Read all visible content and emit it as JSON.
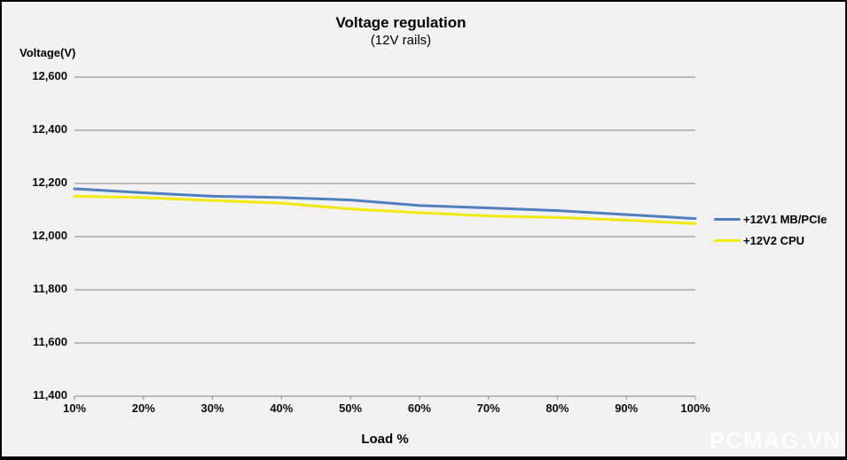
{
  "chart": {
    "title": "Voltage regulation",
    "subtitle": "(12V rails)",
    "y_axis_title": "Voltage(V)",
    "x_axis_title": "Load %"
  },
  "chart_data": {
    "type": "line",
    "title": "Voltage regulation",
    "subtitle": "(12V rails)",
    "xlabel": "Load %",
    "ylabel": "Voltage(V)",
    "categories": [
      "10%",
      "20%",
      "30%",
      "40%",
      "50%",
      "60%",
      "70%",
      "80%",
      "90%",
      "100%"
    ],
    "series": [
      {
        "name": "+12V1 MB/PCIe",
        "color": "#4E80BE",
        "values": [
          12180,
          12165,
          12152,
          12147,
          12138,
          12117,
          12108,
          12098,
          12083,
          12068
        ]
      },
      {
        "name": "+12V2 CPU",
        "color": "#F2E90D",
        "values": [
          12152,
          12147,
          12136,
          12126,
          12104,
          12090,
          12078,
          12072,
          12062,
          12049
        ]
      }
    ],
    "ylim": [
      11400,
      12600
    ],
    "y_ticks": [
      {
        "value": 12600,
        "label": "12,600"
      },
      {
        "value": 12400,
        "label": "12,400"
      },
      {
        "value": 12200,
        "label": "12,200"
      },
      {
        "value": 12000,
        "label": "12,000"
      },
      {
        "value": 11800,
        "label": "11,800"
      },
      {
        "value": 11600,
        "label": "11,600"
      },
      {
        "value": 11400,
        "label": "11,400"
      }
    ],
    "grid": "horizontal",
    "legend_position": "right",
    "colors": {
      "gridline": "#878787",
      "background": "#F2F2F2",
      "text": "#000000"
    }
  },
  "watermark": {
    "text": "PCMAG.VN",
    "color": "#FFFFFF"
  }
}
